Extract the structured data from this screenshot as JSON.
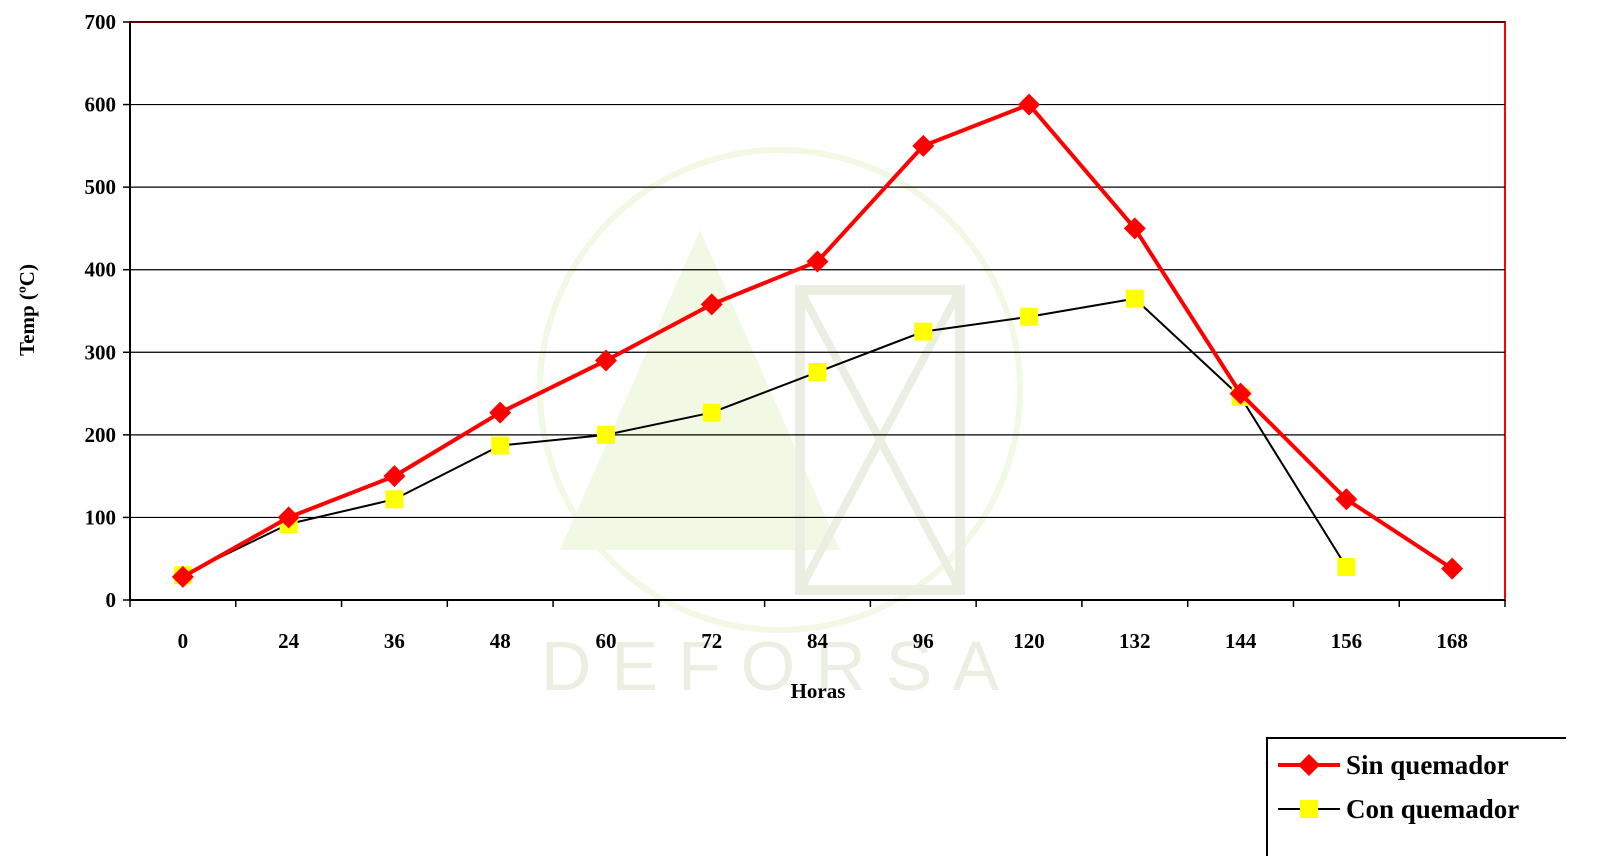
{
  "chart_data": {
    "type": "line",
    "title": "",
    "xlabel": "Horas",
    "ylabel": "Temp (ºC)",
    "categories": [
      "0",
      "24",
      "36",
      "48",
      "60",
      "72",
      "84",
      "96",
      "120",
      "132",
      "144",
      "156",
      "168"
    ],
    "ylim": [
      0,
      700
    ],
    "yticks": [
      "0",
      "100",
      "200",
      "300",
      "400",
      "500",
      "600",
      "700"
    ],
    "grid": true,
    "legend_position": "bottom-right",
    "series": [
      {
        "name": "Sin quemador",
        "color": "#ff0000",
        "line_color": "#ff0000",
        "marker": "diamond",
        "marker_color": "#ff0000",
        "values": [
          28,
          100,
          150,
          227,
          290,
          358,
          410,
          550,
          600,
          450,
          250,
          122,
          38
        ]
      },
      {
        "name": "Con quemador",
        "color": "#ffff00",
        "line_color": "#000000",
        "marker": "square",
        "marker_color": "#ffff00",
        "values": [
          30,
          92,
          122,
          187,
          200,
          227,
          276,
          325,
          343,
          365,
          246,
          40,
          null
        ]
      }
    ],
    "plot_border_color": "#ff0000",
    "watermark_text": "DEFORSA"
  }
}
